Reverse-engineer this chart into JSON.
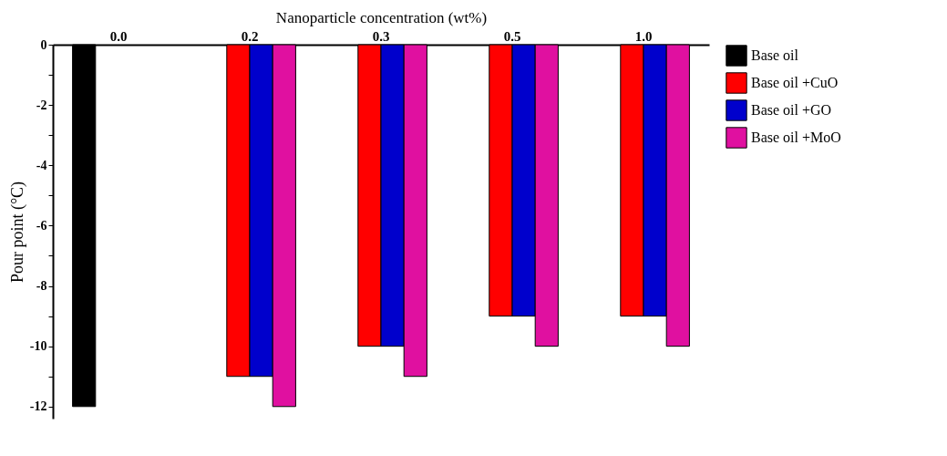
{
  "chart_data": {
    "type": "bar",
    "xlabel": "Nanoparticle concentration (wt%)",
    "ylabel": "Pour point (°C)",
    "categories": [
      "0.0",
      "0.2",
      "0.3",
      "0.5",
      "1.0"
    ],
    "series": [
      {
        "name": "Base oil",
        "color": "#000000",
        "values": [
          -12,
          null,
          null,
          null,
          null
        ]
      },
      {
        "name": "Base oil +CuO",
        "color": "#ff0000",
        "values": [
          null,
          -11,
          -10,
          -9,
          -9
        ]
      },
      {
        "name": "Base oil +GO",
        "color": "#0000cc",
        "values": [
          null,
          -11,
          -10,
          -9,
          -9
        ]
      },
      {
        "name": "Base oil +MoO",
        "color": "#e010a0",
        "values": [
          null,
          -12,
          -11,
          -10,
          -10
        ]
      }
    ],
    "ylim": [
      -12.4,
      0
    ],
    "yticks": [
      0,
      {
        "value": -1,
        "label": null
      },
      -2,
      {
        "value": -3,
        "label": null
      },
      -4,
      {
        "value": -5,
        "label": null
      },
      -6,
      {
        "value": -7,
        "label": null
      },
      -8,
      {
        "value": -9,
        "label": null
      },
      -10,
      {
        "value": -11,
        "label": null
      },
      -12
    ],
    "grid": false,
    "legend": "right"
  }
}
